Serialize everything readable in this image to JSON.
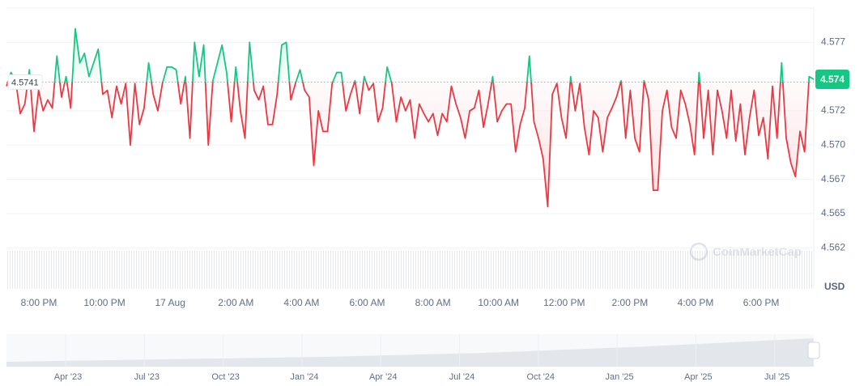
{
  "chart_data": {
    "type": "line",
    "baseline": 4.5741,
    "current_price": {
      "value": 4.5743,
      "label": "4.574"
    },
    "currency_label": "USD",
    "watermark": "CoinMarketCap",
    "up_color": "#16c784",
    "down_color": "#ea3943",
    "ylim": [
      4.559,
      4.5795
    ],
    "yticks": [
      4.562,
      {
        "value": 4.5645,
        "label": "4.565"
      },
      4.567,
      {
        "value": 4.5695,
        "label": "4.570"
      },
      4.572,
      4.577
    ],
    "grid": true,
    "x_labels": [
      "8:00 PM",
      "10:00 PM",
      "17 Aug",
      "2:00 AM",
      "4:00 AM",
      "6:00 AM",
      "8:00 AM",
      "10:00 AM",
      "12:00 PM",
      "2:00 PM",
      "4:00 PM",
      "6:00 PM"
    ],
    "navigator_labels": [
      "Apr '23",
      "Jul '23",
      "Oct '23",
      "Jan '24",
      "Apr '24",
      "Jul '24",
      "Oct '24",
      "Jan '25",
      "Apr '25",
      "Jul '25"
    ],
    "values": [
      4.5738,
      4.5748,
      4.5742,
      4.5718,
      4.5725,
      4.575,
      4.5705,
      4.5735,
      4.572,
      4.5728,
      4.5722,
      4.576,
      4.573,
      4.5745,
      4.5722,
      4.578,
      4.5755,
      4.5762,
      4.5745,
      4.5755,
      4.5765,
      4.5732,
      4.5735,
      4.5715,
      4.5738,
      4.5725,
      4.574,
      4.5695,
      4.574,
      4.571,
      4.5722,
      4.5755,
      4.5732,
      4.572,
      4.574,
      4.5752,
      4.5752,
      4.575,
      4.5725,
      4.5745,
      4.57,
      4.577,
      4.5745,
      4.5768,
      4.5695,
      4.5742,
      4.5755,
      4.5768,
      4.5748,
      4.5712,
      4.5752,
      4.572,
      4.57,
      4.577,
      4.5735,
      4.5728,
      4.5738,
      4.571,
      4.571,
      4.5732,
      4.5768,
      4.577,
      4.5728,
      4.574,
      4.575,
      4.5735,
      4.573,
      4.568,
      4.572,
      4.5705,
      4.5705,
      4.574,
      4.5748,
      4.5748,
      4.572,
      4.5732,
      4.5742,
      4.5718,
      4.5745,
      4.5735,
      4.574,
      4.5712,
      4.5722,
      4.5752,
      4.574,
      4.5712,
      4.573,
      4.572,
      4.5728,
      4.57,
      4.5725,
      4.5718,
      4.5712,
      4.5718,
      4.5702,
      4.5718,
      4.5712,
      4.5738,
      4.5725,
      4.5715,
      4.57,
      4.572,
      4.5722,
      4.5735,
      4.5708,
      4.5725,
      4.5745,
      4.5712,
      4.572,
      4.5725,
      4.5725,
      4.569,
      4.571,
      4.5722,
      4.576,
      4.5712,
      4.57,
      4.5685,
      4.565,
      4.5732,
      4.574,
      4.5715,
      4.57,
      4.5745,
      4.572,
      4.574,
      4.5708,
      4.5688,
      4.572,
      4.5715,
      4.569,
      4.5715,
      4.5722,
      4.573,
      4.5742,
      4.57,
      4.5735,
      4.57,
      4.569,
      4.5742,
      4.5728,
      4.5662,
      4.5662,
      4.572,
      4.5735,
      4.5708,
      4.57,
      4.5735,
      4.5725,
      4.571,
      4.5688,
      4.5748,
      4.57,
      4.5735,
      4.5688,
      4.5735,
      4.572,
      4.57,
      4.5735,
      4.5698,
      4.5725,
      4.5688,
      4.5715,
      4.5735,
      4.5702,
      4.5715,
      4.5685,
      4.5738,
      4.57,
      4.5755,
      4.57,
      4.5682,
      4.5672,
      4.5705,
      4.569,
      4.5745,
      4.5743
    ]
  }
}
